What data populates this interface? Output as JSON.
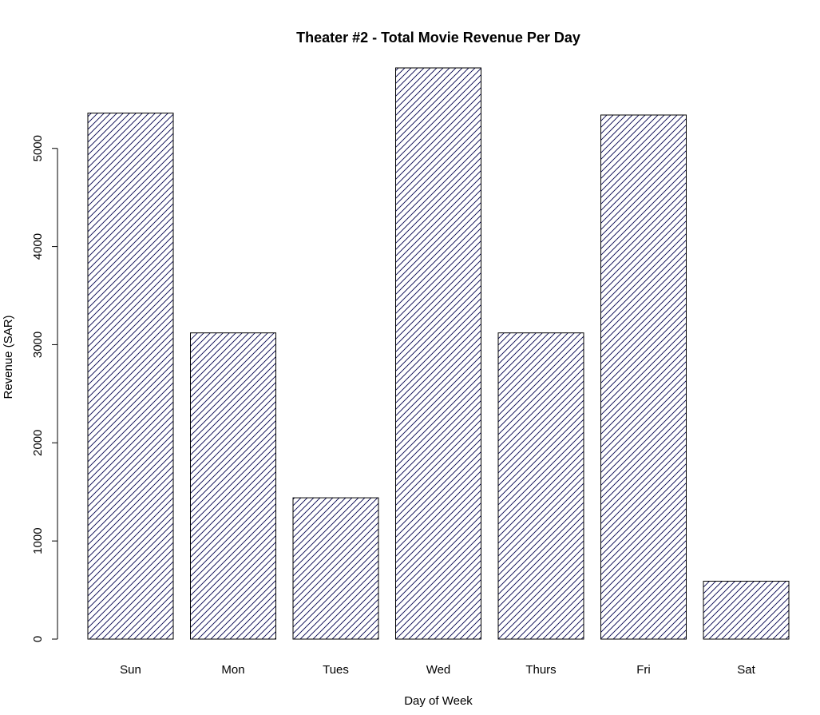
{
  "chart_data": {
    "type": "bar",
    "title": "Theater #2 - Total Movie Revenue Per Day",
    "xlabel": "Day of Week",
    "ylabel": "Revenue (SAR)",
    "categories": [
      "Sun",
      "Mon",
      "Tues",
      "Wed",
      "Thurs",
      "Fri",
      "Sat"
    ],
    "values": [
      5360,
      3120,
      1440,
      5820,
      3120,
      5340,
      590
    ],
    "ylim": [
      0,
      5820
    ],
    "yticks": [
      "0",
      "1000",
      "2000",
      "3000",
      "4000",
      "5000"
    ],
    "grid": false,
    "legend": "none",
    "bar_fill": "diagonal-hatch",
    "hatch_color": "#00004d",
    "border_color": "#000000"
  }
}
